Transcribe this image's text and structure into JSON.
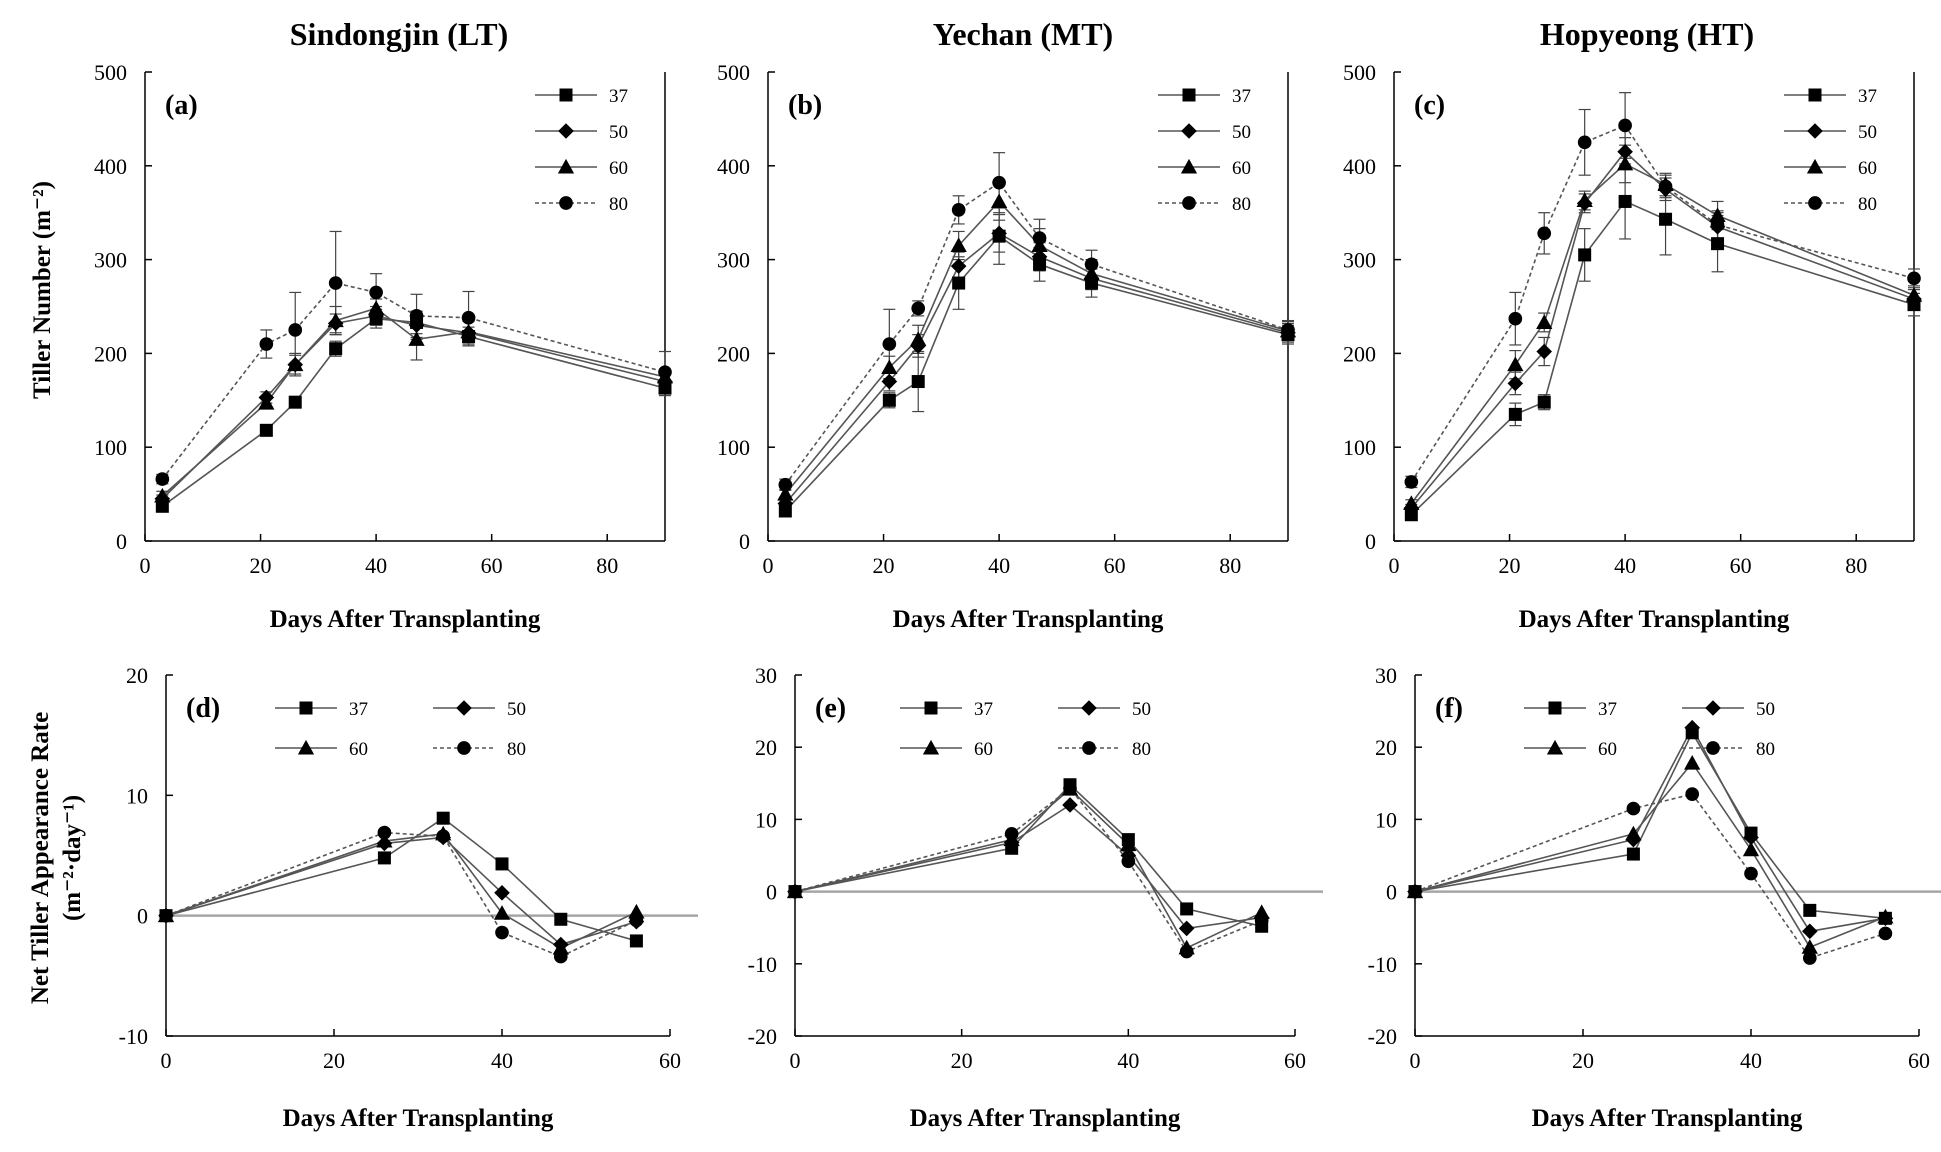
{
  "figure": {
    "column_titles": [
      "Sindongjin (LT)",
      "Yechan (MT)",
      "Hopyeong (HT)"
    ],
    "top_xlabel": "Days After Transplanting",
    "bottom_xlabel": "Days After Transplanting",
    "top_ylabel": "Tiller Number (m⁻²)",
    "bottom_ylabel_line1": "Net Tiller  Appearance Rate",
    "bottom_ylabel_line2": "(m⁻²·day⁻¹)"
  },
  "series_styles": [
    {
      "name": "37",
      "marker": "square",
      "dash": "solid"
    },
    {
      "name": "50",
      "marker": "diamond",
      "dash": "solid"
    },
    {
      "name": "60",
      "marker": "triangle",
      "dash": "solid"
    },
    {
      "name": "80",
      "marker": "circle",
      "dash": "dotted"
    }
  ],
  "colors": {
    "line": "#555555",
    "marker": "#000000",
    "zero_line": "#a6a6a6",
    "axis": "#000000"
  },
  "chart_data": [
    {
      "type": "line",
      "panel": "(a)",
      "title": "Sindongjin (LT)",
      "xlabel": "Days After Transplanting",
      "ylabel": "Tiller Number (m⁻²)",
      "xlim": [
        0,
        90
      ],
      "ylim": [
        0,
        500
      ],
      "xticks": [
        0,
        20,
        40,
        60,
        80
      ],
      "yticks": [
        0,
        100,
        200,
        300,
        400,
        500
      ],
      "legend": "top-right",
      "grid": false,
      "x": [
        3,
        21,
        26,
        33,
        40,
        47,
        56,
        90
      ],
      "series": [
        {
          "name": "37",
          "values": [
            37,
            118,
            148,
            205,
            237,
            233,
            218,
            163
          ],
          "errors": [
            4,
            6,
            5,
            8,
            10,
            12,
            10,
            8
          ]
        },
        {
          "name": "50",
          "values": [
            45,
            153,
            188,
            232,
            240,
            230,
            222,
            170
          ],
          "errors": [
            4,
            6,
            10,
            10,
            10,
            15,
            12,
            8
          ]
        },
        {
          "name": "60",
          "values": [
            48,
            147,
            188,
            235,
            248,
            215,
            223,
            175
          ],
          "errors": [
            5,
            6,
            12,
            15,
            10,
            22,
            15,
            8
          ]
        },
        {
          "name": "80",
          "values": [
            66,
            210,
            225,
            275,
            265,
            240,
            238,
            180
          ],
          "errors": [
            5,
            15,
            40,
            55,
            20,
            23,
            28,
            22
          ]
        }
      ]
    },
    {
      "type": "line",
      "panel": "(b)",
      "title": "Yechan (MT)",
      "xlabel": "Days After Transplanting",
      "ylabel": "",
      "xlim": [
        0,
        90
      ],
      "ylim": [
        0,
        500
      ],
      "xticks": [
        0,
        20,
        40,
        60,
        80
      ],
      "yticks": [
        0,
        100,
        200,
        300,
        400,
        500
      ],
      "legend": "top-right",
      "grid": false,
      "x": [
        3,
        21,
        26,
        33,
        40,
        47,
        56,
        90
      ],
      "series": [
        {
          "name": "37",
          "values": [
            32,
            150,
            170,
            275,
            325,
            295,
            275,
            220
          ],
          "errors": [
            4,
            8,
            32,
            28,
            30,
            18,
            15,
            10
          ]
        },
        {
          "name": "50",
          "values": [
            40,
            170,
            208,
            293,
            328,
            303,
            280,
            222
          ],
          "errors": [
            4,
            10,
            12,
            15,
            20,
            15,
            12,
            10
          ]
        },
        {
          "name": "60",
          "values": [
            50,
            185,
            215,
            315,
            362,
            315,
            285,
            224
          ],
          "errors": [
            5,
            12,
            15,
            15,
            20,
            18,
            15,
            10
          ]
        },
        {
          "name": "80",
          "values": [
            60,
            210,
            248,
            353,
            382,
            323,
            295,
            225
          ],
          "errors": [
            6,
            37,
            8,
            15,
            32,
            20,
            15,
            10
          ]
        }
      ]
    },
    {
      "type": "line",
      "panel": "(c)",
      "title": "Hopyeong (HT)",
      "xlabel": "Days After Transplanting",
      "ylabel": "",
      "xlim": [
        0,
        90
      ],
      "ylim": [
        0,
        500
      ],
      "xticks": [
        0,
        20,
        40,
        60,
        80
      ],
      "yticks": [
        0,
        100,
        200,
        300,
        400,
        500
      ],
      "legend": "top-right",
      "grid": false,
      "x": [
        3,
        21,
        26,
        33,
        40,
        47,
        56,
        90
      ],
      "series": [
        {
          "name": "37",
          "values": [
            28,
            135,
            148,
            305,
            362,
            343,
            317,
            252
          ],
          "errors": [
            4,
            12,
            8,
            28,
            40,
            38,
            30,
            12
          ]
        },
        {
          "name": "50",
          "values": [
            35,
            168,
            202,
            360,
            415,
            375,
            335,
            258
          ],
          "errors": [
            4,
            12,
            15,
            10,
            15,
            12,
            15,
            10
          ]
        },
        {
          "name": "60",
          "values": [
            40,
            188,
            233,
            363,
            402,
            380,
            347,
            262
          ],
          "errors": [
            4,
            15,
            10,
            10,
            20,
            12,
            15,
            10
          ]
        },
        {
          "name": "80",
          "values": [
            63,
            237,
            328,
            425,
            443,
            378,
            337,
            280
          ],
          "errors": [
            6,
            28,
            22,
            35,
            35,
            12,
            15,
            10
          ]
        }
      ]
    },
    {
      "type": "line",
      "panel": "(d)",
      "title": "",
      "xlabel": "Days After Transplanting",
      "ylabel": "Net Tiller  Appearance Rate (m⁻²·day⁻¹)",
      "xlim": [
        0,
        60
      ],
      "ylim": [
        -10,
        20
      ],
      "xticks": [
        0,
        20,
        40,
        60
      ],
      "yticks": [
        -10,
        0,
        10,
        20
      ],
      "legend": "top-right",
      "grid": false,
      "x": [
        0,
        26,
        33,
        40,
        47,
        56
      ],
      "series": [
        {
          "name": "37",
          "values": [
            0,
            4.8,
            8.1,
            4.3,
            -0.3,
            -2.1
          ]
        },
        {
          "name": "50",
          "values": [
            0,
            6.0,
            6.5,
            1.9,
            -2.4,
            -0.5
          ]
        },
        {
          "name": "60",
          "values": [
            0,
            6.2,
            6.8,
            0.2,
            -2.7,
            0.3
          ]
        },
        {
          "name": "80",
          "values": [
            0,
            6.9,
            6.6,
            -1.4,
            -3.4,
            -0.4
          ]
        }
      ]
    },
    {
      "type": "line",
      "panel": "(e)",
      "title": "",
      "xlabel": "Days After Transplanting",
      "ylabel": "",
      "xlim": [
        0,
        60
      ],
      "ylim": [
        -20,
        30
      ],
      "xticks": [
        0,
        20,
        40,
        60
      ],
      "yticks": [
        -20,
        -10,
        0,
        10,
        20,
        30
      ],
      "legend": "top-right",
      "grid": false,
      "x": [
        0,
        26,
        33,
        40,
        47,
        56
      ],
      "series": [
        {
          "name": "37",
          "values": [
            0,
            6.0,
            14.8,
            7.2,
            -2.4,
            -4.8
          ]
        },
        {
          "name": "50",
          "values": [
            0,
            6.8,
            12.0,
            5.0,
            -5.1,
            -3.6
          ]
        },
        {
          "name": "60",
          "values": [
            0,
            7.2,
            14.2,
            6.5,
            -7.8,
            -2.9
          ]
        },
        {
          "name": "80",
          "values": [
            0,
            8.0,
            14.3,
            4.2,
            -8.3,
            -4.0
          ]
        }
      ]
    },
    {
      "type": "line",
      "panel": "(f)",
      "title": "",
      "xlabel": "Days After Transplanting",
      "ylabel": "",
      "xlim": [
        0,
        60
      ],
      "ylim": [
        -20,
        30
      ],
      "xticks": [
        0,
        20,
        40,
        60
      ],
      "yticks": [
        -20,
        -10,
        0,
        10,
        20,
        30
      ],
      "legend": "top-right",
      "grid": false,
      "x": [
        0,
        26,
        33,
        40,
        47,
        56
      ],
      "series": [
        {
          "name": "37",
          "values": [
            0,
            5.2,
            22.0,
            8.1,
            -2.6,
            -3.7
          ]
        },
        {
          "name": "50",
          "values": [
            0,
            7.2,
            22.7,
            7.5,
            -5.5,
            -3.7
          ]
        },
        {
          "name": "60",
          "values": [
            0,
            8.0,
            17.8,
            5.8,
            -7.7,
            -3.5
          ]
        },
        {
          "name": "80",
          "values": [
            0,
            11.5,
            13.5,
            2.5,
            -9.2,
            -5.8
          ]
        }
      ]
    }
  ]
}
